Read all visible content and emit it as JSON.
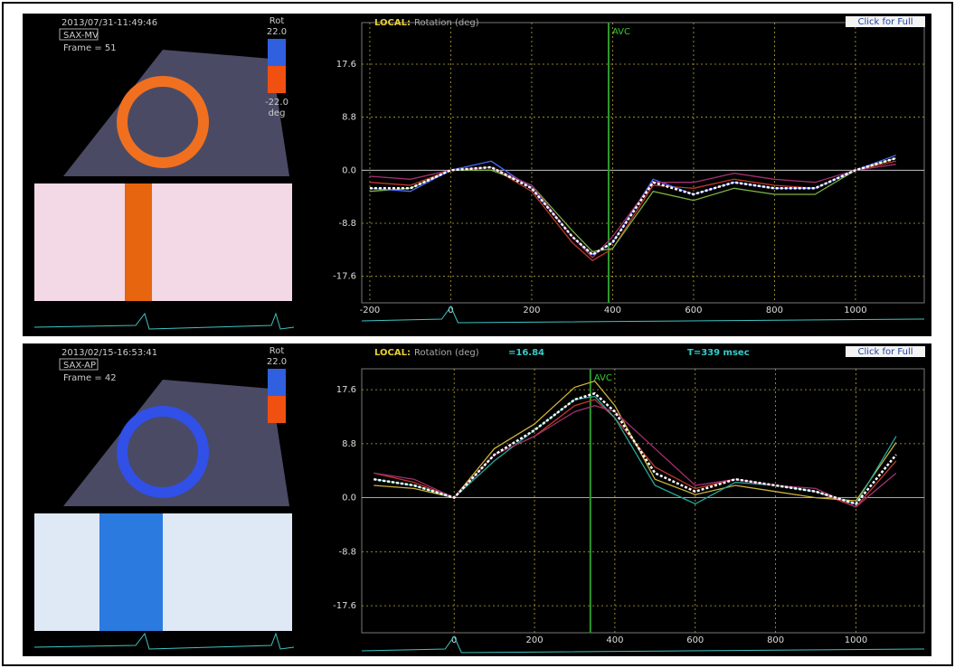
{
  "panels": [
    {
      "timestamp": "2013/07/31-11:49:46",
      "view": "SAX-MV",
      "frame": "Frame = 51",
      "scale_label": "Rot",
      "scale_max": "22.0",
      "scale_min": "-22.0",
      "scale_unit": "deg",
      "chart": {
        "type": "line",
        "mode": "LOCAL:",
        "title": "Rotation (deg)",
        "button": "Click for Full",
        "annotation": "AVC",
        "avc_x": 390,
        "xlim": [
          -220,
          1170
        ],
        "ylim": [
          -22,
          24.5
        ],
        "xticks": [
          -200,
          0,
          200,
          400,
          600,
          800,
          1000
        ],
        "yticks": [
          17.6,
          8.8,
          {
            "value": 0,
            "label": "0.0"
          },
          -8.8,
          -17.6
        ],
        "x": [
          -200,
          -100,
          0,
          100,
          200,
          300,
          350,
          400,
          500,
          600,
          700,
          800,
          900,
          1000,
          1100
        ],
        "series": [
          {
            "color": "#c0392b",
            "values": [
              -2,
              -2.5,
              0,
              0.5,
              -3.5,
              -12,
              -15,
              -13,
              -2.5,
              -3,
              -1.5,
              -2.5,
              -3,
              0,
              1.5
            ]
          },
          {
            "color": "#7cb342",
            "values": [
              -3.5,
              -3,
              0,
              0,
              -2.5,
              -10,
              -13.5,
              -13,
              -3.5,
              -5,
              -3,
              -4,
              -4,
              0,
              2
            ]
          },
          {
            "color": "#4a6cf7",
            "values": [
              -3,
              -3.5,
              0,
              1.5,
              -3,
              -11,
              -14,
              -12,
              -1.5,
              -4,
              -2,
              -3,
              -3,
              0,
              2.5
            ]
          },
          {
            "color": "#a03070",
            "values": [
              -1,
              -1.5,
              0,
              0.5,
              -2.5,
              -11,
              -14.5,
              -11,
              -2,
              -2,
              -0.5,
              -1.5,
              -2,
              0,
              1
            ]
          },
          {
            "color": "#ffffff",
            "dashed": true,
            "values": [
              -3,
              -3,
              0,
              0.5,
              -3,
              -11,
              -14,
              -12,
              -2,
              -4,
              -2,
              -3,
              -3,
              0,
              2
            ]
          }
        ]
      }
    },
    {
      "timestamp": "2013/02/15-16:53:41",
      "view": "SAX-AP",
      "frame": "Frame = 42",
      "scale_label": "Rot",
      "scale_max": "22.0",
      "chart": {
        "type": "line",
        "mode": "LOCAL:",
        "title": "Rotation (deg)",
        "readout": "=16.84",
        "time": "T=339 msec",
        "button": "Click for Full",
        "annotation": "AVC",
        "avc_x": 339,
        "xlim": [
          -230,
          1170
        ],
        "ylim": [
          -22,
          21
        ],
        "xticks": [
          0,
          200,
          400,
          600,
          800,
          1000
        ],
        "yticks": [
          17.6,
          8.8,
          {
            "value": 0,
            "label": "0.0"
          },
          -8.8,
          -17.6
        ],
        "x": [
          -200,
          -100,
          0,
          100,
          200,
          300,
          350,
          400,
          500,
          600,
          700,
          800,
          900,
          1000,
          1100
        ],
        "series": [
          {
            "color": "#c0392b",
            "values": [
              4,
              2.5,
              0,
              7,
              10,
              15,
              16,
              13,
              5,
              1.5,
              3,
              2,
              1,
              -1.5,
              6
            ]
          },
          {
            "color": "#cbb33a",
            "values": [
              2,
              1.5,
              0,
              8,
              12,
              18,
              19,
              15,
              3,
              0.5,
              2,
              1,
              0,
              -0.5,
              9
            ]
          },
          {
            "color": "#26a69a",
            "values": [
              3,
              2,
              0,
              6,
              11,
              16,
              16.5,
              13,
              2,
              -1,
              2.5,
              2,
              1,
              -1,
              10
            ]
          },
          {
            "color": "#a03070",
            "values": [
              4,
              3,
              0,
              7,
              10,
              14,
              15,
              14,
              8,
              2,
              3,
              2,
              1.5,
              -1.5,
              4
            ]
          },
          {
            "color": "#ffffff",
            "dashed": true,
            "values": [
              3,
              2,
              0,
              7,
              11,
              16,
              17,
              14,
              4,
              1,
              3,
              2,
              1,
              -1,
              7
            ]
          }
        ]
      }
    }
  ]
}
